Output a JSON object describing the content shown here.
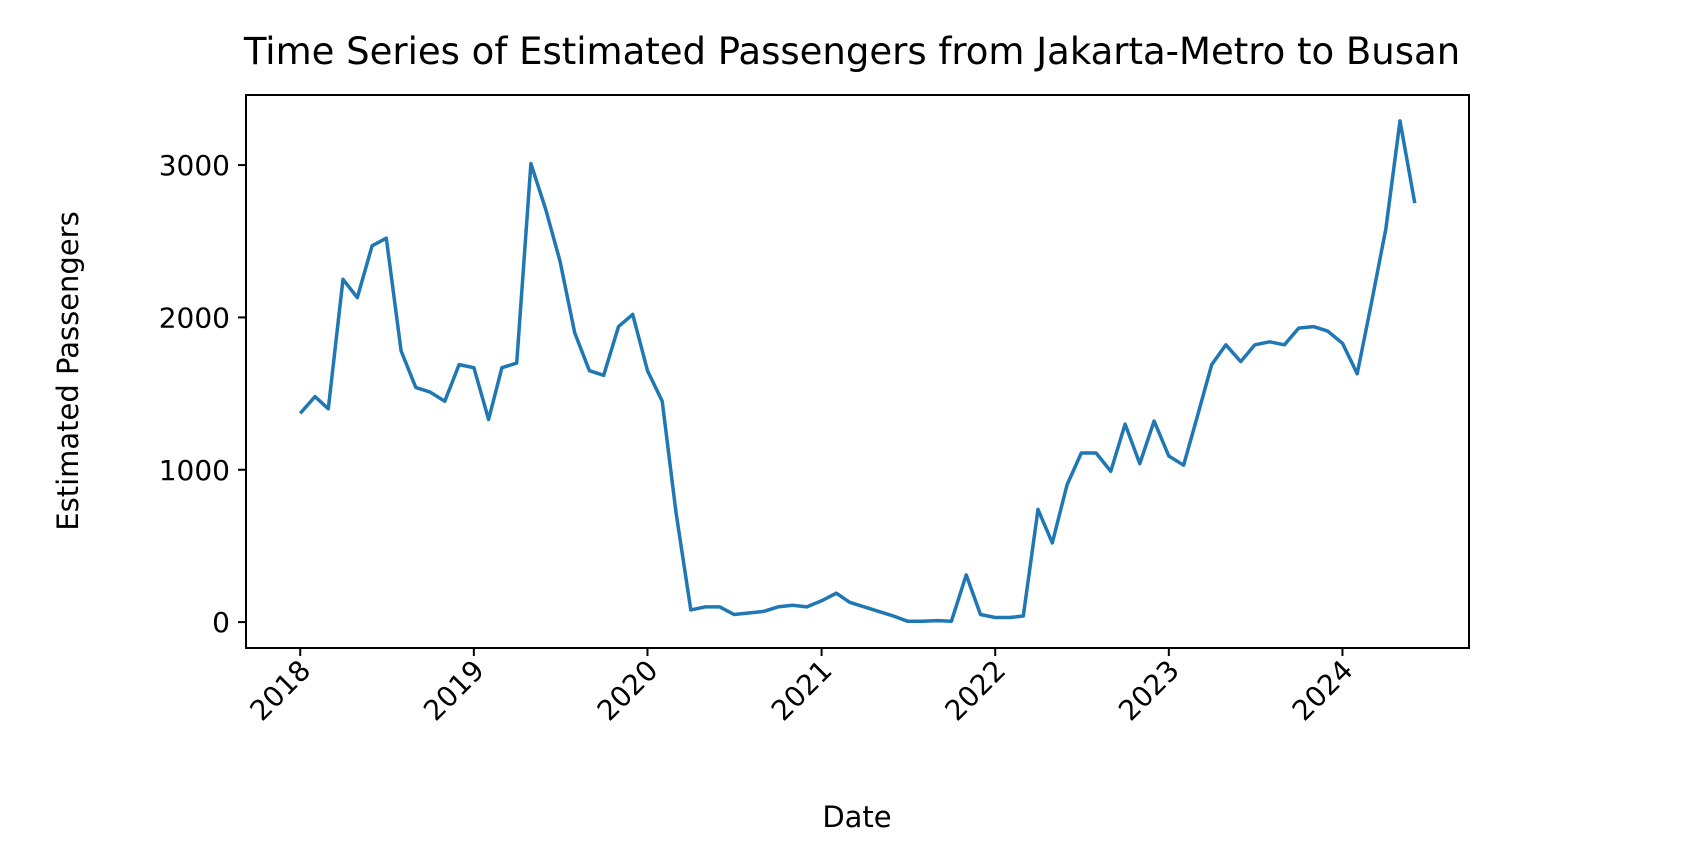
{
  "chart_data": {
    "type": "line",
    "title": "Time Series of Estimated Passengers from Jakarta-Metro to Busan",
    "xlabel": "Date",
    "ylabel": "Estimated Passengers",
    "x_ticks": [
      "2018",
      "2019",
      "2020",
      "2021",
      "2022",
      "2023",
      "2024"
    ],
    "y_ticks": [
      0,
      1000,
      2000,
      3000
    ],
    "xlim": [
      "2017-09-09",
      "2024-09-23"
    ],
    "ylim": [
      -170,
      3460
    ],
    "grid": false,
    "color": "#1f77b4",
    "series": [
      {
        "x": [
          "2018-01",
          "2018-02",
          "2018-03",
          "2018-04",
          "2018-05",
          "2018-06",
          "2018-07",
          "2018-08",
          "2018-09",
          "2018-10",
          "2018-11",
          "2018-12",
          "2019-01",
          "2019-02",
          "2019-03",
          "2019-04",
          "2019-05",
          "2019-06",
          "2019-07",
          "2019-08",
          "2019-09",
          "2019-10",
          "2019-11",
          "2019-12",
          "2020-01",
          "2020-02",
          "2020-03",
          "2020-04",
          "2020-05",
          "2020-06",
          "2020-07",
          "2020-08",
          "2020-09",
          "2020-10",
          "2020-11",
          "2020-12",
          "2021-01",
          "2021-02",
          "2021-03",
          "2021-04",
          "2021-05",
          "2021-06",
          "2021-07",
          "2021-08",
          "2021-09",
          "2021-10",
          "2021-11",
          "2021-12",
          "2022-01",
          "2022-02",
          "2022-03",
          "2022-04",
          "2022-05",
          "2022-06",
          "2022-07",
          "2022-08",
          "2022-09",
          "2022-10",
          "2022-11",
          "2022-12",
          "2023-01",
          "2023-02",
          "2023-03",
          "2023-04",
          "2023-05",
          "2023-06",
          "2023-07",
          "2023-08",
          "2023-09",
          "2023-10",
          "2023-11",
          "2023-12",
          "2024-01",
          "2024-02",
          "2024-03",
          "2024-04",
          "2024-05",
          "2024-06"
        ],
        "values": [
          1370,
          1480,
          1400,
          2250,
          2130,
          2470,
          2520,
          1780,
          1540,
          1510,
          1450,
          1690,
          1670,
          1330,
          1670,
          1700,
          3010,
          2710,
          2370,
          1900,
          1650,
          1620,
          1940,
          2020,
          1650,
          1450,
          720,
          80,
          100,
          100,
          50,
          60,
          70,
          100,
          110,
          100,
          140,
          190,
          130,
          100,
          70,
          40,
          5,
          5,
          10,
          5,
          310,
          50,
          30,
          30,
          40,
          740,
          520,
          900,
          1110,
          1110,
          990,
          1300,
          1040,
          1320,
          1090,
          1030,
          1340,
          1690,
          1820,
          1710,
          1820,
          1840,
          1820,
          1930,
          1940,
          1910,
          1830,
          1630,
          2080,
          2580,
          3290,
          2750
        ]
      }
    ]
  }
}
